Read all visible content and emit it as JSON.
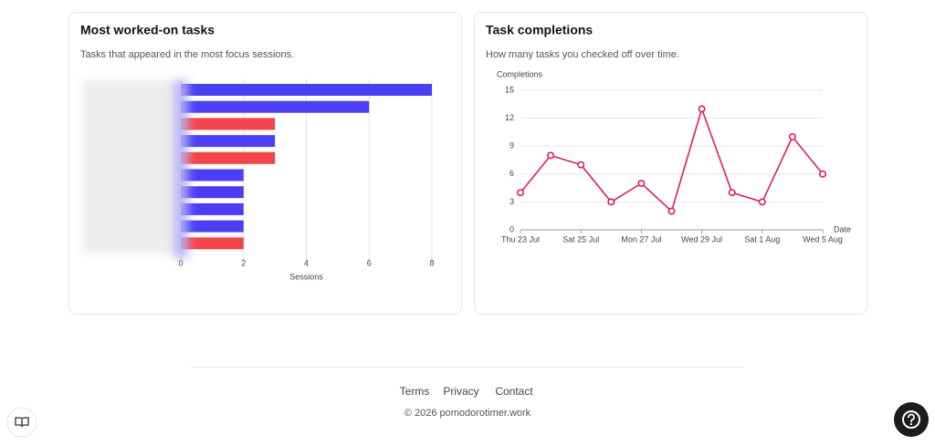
{
  "chart_data": [
    {
      "type": "hbar",
      "title": "Most worked-on tasks",
      "subtitle": "Tasks that appeared in the most focus sessions.",
      "categories": [
        null,
        null,
        null,
        null,
        null,
        null,
        null,
        null,
        null,
        null
      ],
      "values": [
        8,
        6,
        3,
        3,
        3,
        2,
        2,
        2,
        2,
        2
      ],
      "colors": [
        "#4a3ff2",
        "#4a3ff2",
        "#f4434b",
        "#4a3ff2",
        "#f4434b",
        "#4a3ff2",
        "#4a3ff2",
        "#4a3ff2",
        "#4a3ff2",
        "#f4434b"
      ],
      "xlabel": "Sessions",
      "xlim": [
        0,
        8
      ],
      "xticks": [
        0,
        2,
        4,
        6,
        8
      ],
      "grid": true
    },
    {
      "type": "line",
      "title": "Task completions",
      "subtitle": "How many tasks you checked off over time.",
      "categories": [
        "Thu 23 Jul",
        null,
        "Sat 25 Jul",
        null,
        "Mon 27 Jul",
        null,
        "Wed 29 Jul",
        null,
        "Sat 1 Aug",
        null,
        "Wed 5 Aug"
      ],
      "values": [
        4,
        8,
        7,
        3,
        5,
        2,
        13,
        4,
        3,
        10,
        6
      ],
      "color": "#e0204f",
      "xlabel": "Date",
      "ylabel": "Completions",
      "ylim": [
        0,
        15
      ],
      "yticks": [
        0,
        3,
        6,
        9,
        12,
        15
      ],
      "grid": true
    }
  ],
  "footer": {
    "links": [
      "Terms",
      "Privacy",
      "Contact"
    ],
    "copyright": "© 2026 pomodorotimer.work"
  }
}
